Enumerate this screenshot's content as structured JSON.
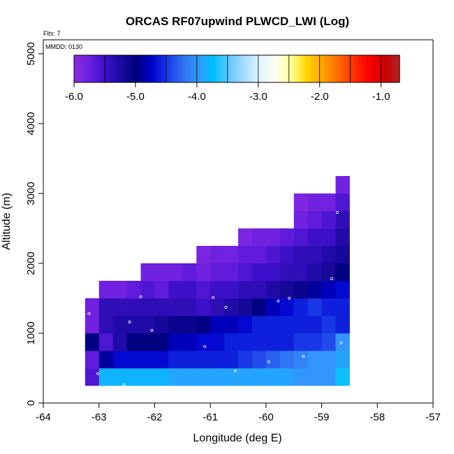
{
  "chart_data": {
    "type": "heatmap",
    "title": "ORCAS RF07upwind PLWCD_LWI (Log)",
    "flights_label": "Flts: 7",
    "date_label": "MMDD: 0130",
    "xlabel": "Longitude (deg E)",
    "ylabel": "Altitude (m)",
    "xlim": [
      -64,
      -57
    ],
    "ylim": [
      0,
      5200
    ],
    "x_ticks": [
      -64,
      -63,
      -62,
      -61,
      -60,
      -59,
      -58,
      -57
    ],
    "y_ticks": [
      0,
      1000,
      2000,
      3000,
      4000,
      5000
    ],
    "cell_size": {
      "lon": 0.25,
      "alt": 250
    },
    "colorbar": {
      "range": [
        -6.0,
        -0.7
      ],
      "ticks": [
        -6.0,
        -5.0,
        -4.0,
        -3.0,
        -2.0,
        -1.0
      ],
      "tick_labels": [
        "-6.0",
        "-5.0",
        "-4.0",
        "-3.0",
        "-2.0",
        "-1.0"
      ],
      "colors": [
        "#8a2be2",
        "#6a1fe0",
        "#3b10c8",
        "#1a0a9e",
        "#000080",
        "#0000cd",
        "#1a3ae8",
        "#2f6ff0",
        "#3399ff",
        "#00bfff",
        "#66c8ff",
        "#aadcff",
        "#e0f4ff",
        "#fffff0",
        "#ffff99",
        "#ffd700",
        "#ffa500",
        "#ff7000",
        "#ff3300",
        "#ff0000",
        "#cc0000",
        "#b22222"
      ]
    },
    "columns": [
      {
        "lon_start": -63.25,
        "values": [
          -5.6,
          -5.7,
          -5.0,
          -5.8,
          -5.8
        ]
      },
      {
        "lon_start": -63.0,
        "values": [
          -3.8,
          -4.9,
          -5.6,
          -5.4,
          -5.4,
          -5.8
        ]
      },
      {
        "lon_start": -62.75,
        "values": [
          -3.8,
          -4.7,
          -5.3,
          -5.3,
          -5.4,
          -5.8
        ]
      },
      {
        "lon_start": -62.5,
        "values": [
          -3.8,
          -4.7,
          -5.0,
          -5.3,
          -5.4,
          -5.7
        ]
      },
      {
        "lon_start": -62.25,
        "values": [
          -3.8,
          -4.7,
          -5.0,
          -5.3,
          -5.4,
          -5.6,
          -5.8
        ]
      },
      {
        "lon_start": -62.0,
        "values": [
          -3.8,
          -4.7,
          -5.0,
          -5.2,
          -5.4,
          -5.7,
          -5.8
        ]
      },
      {
        "lon_start": -61.75,
        "values": [
          -3.9,
          -4.6,
          -4.8,
          -5.1,
          -5.4,
          -5.5,
          -5.8
        ]
      },
      {
        "lon_start": -61.5,
        "values": [
          -3.9,
          -4.6,
          -4.8,
          -5.1,
          -5.4,
          -5.5,
          -5.7
        ]
      },
      {
        "lon_start": -61.25,
        "values": [
          -3.9,
          -4.6,
          -4.7,
          -5.0,
          -5.5,
          -5.6,
          -5.8,
          -5.9
        ]
      },
      {
        "lon_start": -61.0,
        "values": [
          -3.9,
          -4.6,
          -4.7,
          -4.8,
          -5.4,
          -5.5,
          -5.7,
          -5.8
        ]
      },
      {
        "lon_start": -60.75,
        "values": [
          -3.9,
          -4.6,
          -4.6,
          -4.8,
          -5.3,
          -5.5,
          -5.7,
          -5.8
        ]
      },
      {
        "lon_start": -60.5,
        "values": [
          -3.9,
          -4.5,
          -4.6,
          -4.7,
          -5.2,
          -5.4,
          -5.6,
          -5.7,
          -5.9
        ]
      },
      {
        "lon_start": -60.25,
        "values": [
          -3.9,
          -4.4,
          -4.6,
          -4.6,
          -5.0,
          -5.4,
          -5.5,
          -5.7,
          -5.8
        ]
      },
      {
        "lon_start": -60.0,
        "values": [
          -3.9,
          -4.3,
          -4.6,
          -4.6,
          -4.8,
          -5.3,
          -5.5,
          -5.6,
          -5.8
        ]
      },
      {
        "lon_start": -59.75,
        "values": [
          -3.9,
          -4.2,
          -4.6,
          -4.6,
          -4.7,
          -5.2,
          -5.4,
          -5.5,
          -5.7
        ]
      },
      {
        "lon_start": -59.5,
        "values": [
          -4.0,
          -4.1,
          -4.5,
          -4.6,
          -4.6,
          -5.1,
          -5.4,
          -5.4,
          -5.6,
          -5.8,
          -5.9
        ]
      },
      {
        "lon_start": -59.25,
        "values": [
          -4.0,
          -4.0,
          -4.5,
          -4.6,
          -4.5,
          -4.9,
          -5.3,
          -5.4,
          -5.5,
          -5.7,
          -5.8
        ]
      },
      {
        "lon_start": -59.0,
        "values": [
          -4.0,
          -4.0,
          -4.4,
          -4.5,
          -4.6,
          -4.8,
          -5.2,
          -5.3,
          -5.5,
          -5.6,
          -5.8
        ]
      },
      {
        "lon_start": -58.75,
        "values": [
          -3.7,
          -3.9,
          -4.0,
          -4.6,
          -4.6,
          -4.7,
          -5.0,
          -5.2,
          -5.3,
          -5.4,
          -5.6,
          -5.8
        ]
      }
    ],
    "points": [
      {
        "lon": -62.97,
        "alt": 160
      },
      {
        "lon": -62.93,
        "alt": 160
      },
      {
        "lon": -62.75,
        "alt": 160
      },
      {
        "lon": -62.55,
        "alt": 260
      },
      {
        "lon": -62.05,
        "alt": 1040
      },
      {
        "lon": -62.25,
        "alt": 1520
      },
      {
        "lon": -62.45,
        "alt": 1160
      },
      {
        "lon": -63.02,
        "alt": 420
      },
      {
        "lon": -63.18,
        "alt": 1280
      },
      {
        "lon": -61.75,
        "alt": 180
      },
      {
        "lon": -61.55,
        "alt": 160
      },
      {
        "lon": -61.35,
        "alt": 160
      },
      {
        "lon": -61.1,
        "alt": 810
      },
      {
        "lon": -60.95,
        "alt": 1510
      },
      {
        "lon": -60.72,
        "alt": 1370
      },
      {
        "lon": -60.55,
        "alt": 460
      },
      {
        "lon": -60.32,
        "alt": 160
      },
      {
        "lon": -60.12,
        "alt": 160
      },
      {
        "lon": -59.95,
        "alt": 590
      },
      {
        "lon": -59.78,
        "alt": 1460
      },
      {
        "lon": -59.58,
        "alt": 1500
      },
      {
        "lon": -59.33,
        "alt": 670
      },
      {
        "lon": -59.15,
        "alt": 160
      },
      {
        "lon": -59.0,
        "alt": 160
      },
      {
        "lon": -58.85,
        "alt": 160
      },
      {
        "lon": -58.82,
        "alt": 1780
      },
      {
        "lon": -58.7,
        "alt": 160
      },
      {
        "lon": -58.65,
        "alt": 860
      },
      {
        "lon": -58.72,
        "alt": 2730
      }
    ]
  }
}
